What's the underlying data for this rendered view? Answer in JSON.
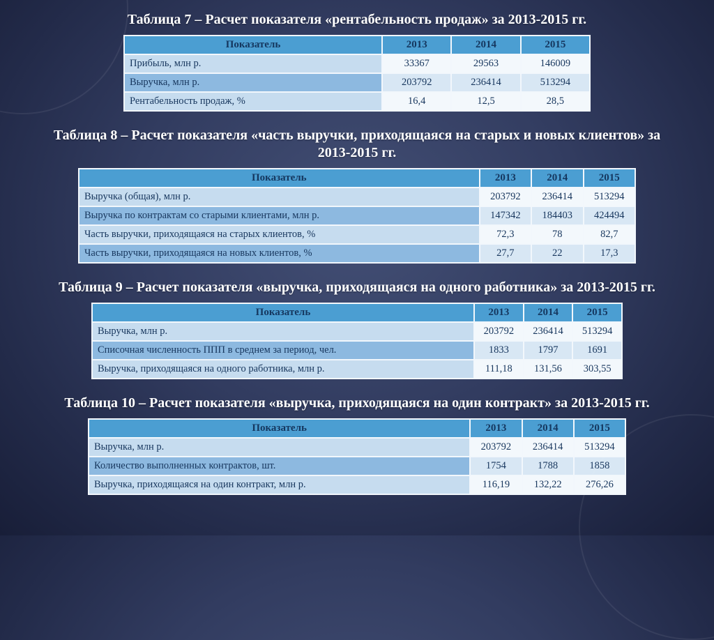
{
  "tables": [
    {
      "title": "Таблица 7 – Расчет показателя «рентабельность продаж» за 2013-2015 гг.",
      "headers": [
        "Показатель",
        "2013",
        "2014",
        "2015"
      ],
      "rows": [
        {
          "label": "Прибыль, млн р.",
          "values": [
            "33367",
            "29563",
            "146009"
          ]
        },
        {
          "label": "Выручка, млн р.",
          "values": [
            "203792",
            "236414",
            "513294"
          ]
        },
        {
          "label": "Рентабельность продаж, %",
          "values": [
            "16,4",
            "12,5",
            "28,5"
          ]
        }
      ]
    },
    {
      "title": "Таблица 8 – Расчет показателя «часть выручки, приходящаяся на старых и новых клиентов» за 2013-2015 гг.",
      "headers": [
        "Показатель",
        "2013",
        "2014",
        "2015"
      ],
      "rows": [
        {
          "label": "Выручка (общая), млн р.",
          "values": [
            "203792",
            "236414",
            "513294"
          ]
        },
        {
          "label": "Выручка по контрактам со старыми клиентами, млн р.",
          "values": [
            "147342",
            "184403",
            "424494"
          ]
        },
        {
          "label": "Часть выручки, приходящаяся на старых клиентов, %",
          "values": [
            "72,3",
            "78",
            "82,7"
          ]
        },
        {
          "label": "Часть выручки, приходящаяся на новых клиентов, %",
          "values": [
            "27,7",
            "22",
            "17,3"
          ]
        }
      ]
    },
    {
      "title": "Таблица 9 – Расчет показателя «выручка, приходящаяся на одного работника» за 2013-2015 гг.",
      "headers": [
        "Показатель",
        "2013",
        "2014",
        "2015"
      ],
      "rows": [
        {
          "label": "Выручка, млн р.",
          "values": [
            "203792",
            "236414",
            "513294"
          ]
        },
        {
          "label": "Списочная численность ППП в среднем за период, чел.",
          "values": [
            "1833",
            "1797",
            "1691"
          ]
        },
        {
          "label": "Выручка, приходящаяся на одного работника, млн р.",
          "values": [
            "111,18",
            "131,56",
            "303,55"
          ]
        }
      ]
    },
    {
      "title": "Таблица 10 – Расчет показателя «выручка, приходящаяся на один контракт» за 2013-2015 гг.",
      "headers": [
        "Показатель",
        "2013",
        "2014",
        "2015"
      ],
      "rows": [
        {
          "label": "Выручка, млн р.",
          "values": [
            "203792",
            "236414",
            "513294"
          ]
        },
        {
          "label": "Количество выполненных контрактов, шт.",
          "values": [
            "1754",
            "1788",
            "1858"
          ]
        },
        {
          "label": "Выручка, приходящаяся на один контракт, млн р.",
          "values": [
            "116,19",
            "132,22",
            "276,26"
          ]
        }
      ]
    }
  ],
  "colors": {
    "background_center": "#434f75",
    "background_edge": "#181e38",
    "table_header": "#4b9ed2",
    "label_light": "#c6dcef",
    "label_dark": "#8db9e0",
    "value_light": "#f3f8fc",
    "value_band": "#d8e7f4",
    "table_text": "#17365d",
    "title_text": "#ffffff"
  }
}
